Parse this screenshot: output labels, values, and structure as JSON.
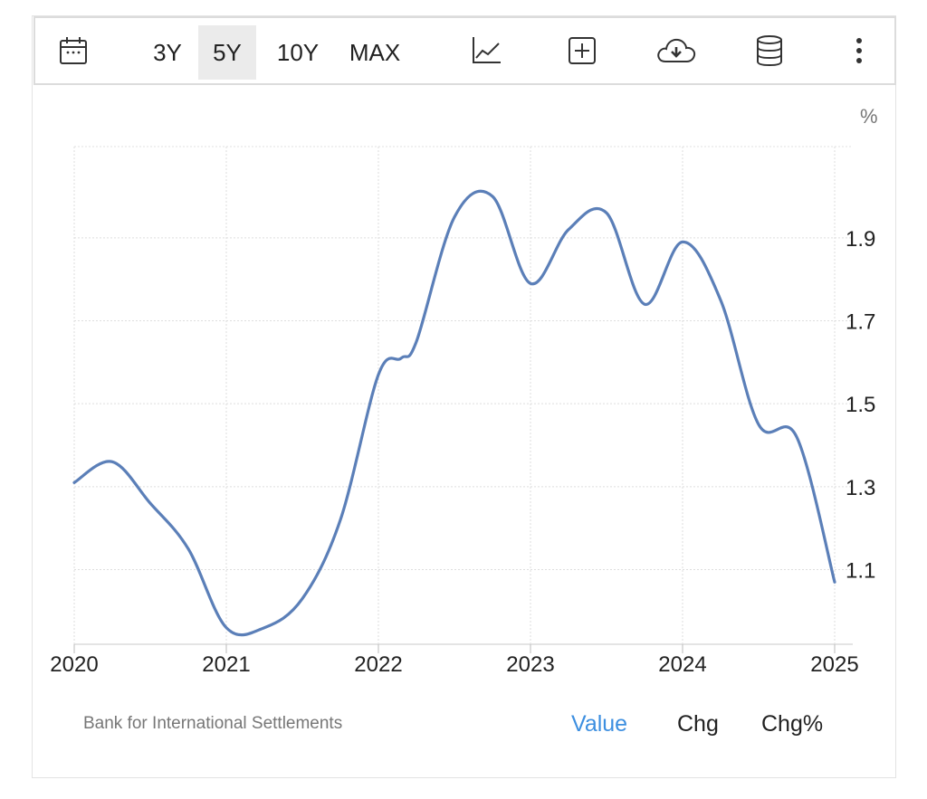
{
  "toolbar": {
    "icons": [
      "calendar-icon",
      "line-chart-icon",
      "add-box-icon",
      "cloud-download-icon",
      "database-icon",
      "more-vert-icon"
    ],
    "ranges": [
      {
        "label": "3Y",
        "active": false
      },
      {
        "label": "5Y",
        "active": true
      },
      {
        "label": "10Y",
        "active": false
      },
      {
        "label": "MAX",
        "active": false
      }
    ]
  },
  "chart_data": {
    "type": "line",
    "unit_label": "%",
    "xlim": [
      2020,
      2025
    ],
    "ylim": [
      0.92,
      2.12
    ],
    "y_ticks": [
      1.1,
      1.3,
      1.5,
      1.7,
      1.9
    ],
    "y_tick_labels": [
      "1.1",
      "1.3",
      "1.5",
      "1.7",
      "1.9"
    ],
    "x_ticks": [
      2020,
      2021,
      2022,
      2023,
      2024,
      2025
    ],
    "x_tick_labels": [
      "2020",
      "2021",
      "2022",
      "2023",
      "2024",
      "2025"
    ],
    "grid": true,
    "line_color": "#5b7fb8",
    "series": [
      {
        "name": "",
        "x": [
          2020.0,
          2020.25,
          2020.5,
          2020.75,
          2021.0,
          2021.25,
          2021.5,
          2021.75,
          2022.0,
          2022.15,
          2022.25,
          2022.5,
          2022.75,
          2023.0,
          2023.25,
          2023.5,
          2023.75,
          2024.0,
          2024.25,
          2024.5,
          2024.75,
          2025.0
        ],
        "y": [
          1.31,
          1.36,
          1.26,
          1.15,
          0.96,
          0.96,
          1.03,
          1.22,
          1.57,
          1.61,
          1.65,
          1.95,
          2.0,
          1.79,
          1.92,
          1.96,
          1.74,
          1.89,
          1.75,
          1.45,
          1.42,
          1.07
        ]
      }
    ]
  },
  "footer": {
    "source": "Bank for International Settlements",
    "tabs": [
      {
        "label": "Value",
        "active": true
      },
      {
        "label": "Chg",
        "active": false
      },
      {
        "label": "Chg%",
        "active": false
      }
    ]
  }
}
